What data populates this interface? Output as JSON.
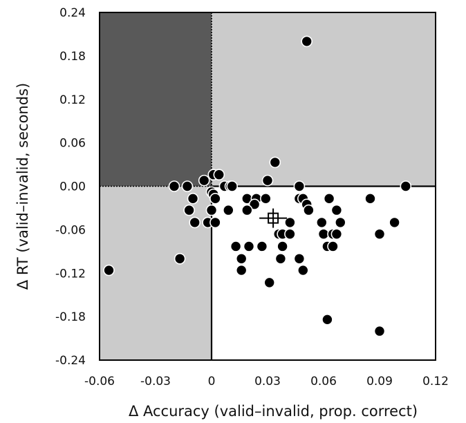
{
  "chart_data": {
    "type": "scatter",
    "title": "",
    "xlabel": "Δ Accuracy (valid–invalid, prop. correct)",
    "ylabel": "Δ RT (valid–invalid, seconds)",
    "xlim": [
      -0.06,
      0.12
    ],
    "ylim": [
      -0.24,
      0.24
    ],
    "x_ticks": [
      -0.06,
      -0.03,
      0,
      0.03,
      0.06,
      0.09,
      0.12
    ],
    "x_tick_labels": [
      "-0.06",
      "-0.03",
      "0",
      "0.03",
      "0.06",
      "0.09",
      "0.12"
    ],
    "y_ticks": [
      0.24,
      0.18,
      0.12,
      0.06,
      0.0,
      -0.06,
      -0.12,
      -0.18,
      -0.24
    ],
    "y_tick_labels": [
      "0.24",
      "0.18",
      "0.12",
      "0.06",
      "0.00",
      "-0.06",
      "-0.12",
      "-0.18",
      "-0.24"
    ],
    "grid": false,
    "region_colors": {
      "top_left": "#595959",
      "top_right": "#cbcbcb",
      "bottom_left": "#cbcbcb",
      "bottom_right": "#ffffff"
    },
    "point_color": "#000000",
    "mean_marker": {
      "x": 0.033,
      "y": -0.044,
      "shape": "crossed-square"
    },
    "points": [
      [
        0.051,
        0.2
      ],
      [
        0.034,
        0.033
      ],
      [
        0.001,
        0.016
      ],
      [
        0.004,
        0.016
      ],
      [
        -0.004,
        0.008
      ],
      [
        0.03,
        0.008
      ],
      [
        -0.02,
        0.0
      ],
      [
        -0.013,
        0.0
      ],
      [
        0.007,
        0.0
      ],
      [
        0.01,
        0.0
      ],
      [
        0.011,
        0.0
      ],
      [
        0.047,
        0.0
      ],
      [
        0.104,
        0.0
      ],
      [
        0.0,
        -0.008
      ],
      [
        0.001,
        -0.011
      ],
      [
        -0.01,
        -0.017
      ],
      [
        0.002,
        -0.017
      ],
      [
        0.019,
        -0.017
      ],
      [
        0.024,
        -0.017
      ],
      [
        0.029,
        -0.017
      ],
      [
        0.047,
        -0.017
      ],
      [
        0.049,
        -0.017
      ],
      [
        0.063,
        -0.017
      ],
      [
        0.085,
        -0.017
      ],
      [
        0.023,
        -0.025
      ],
      [
        0.051,
        -0.025
      ],
      [
        -0.012,
        -0.033
      ],
      [
        0.0,
        -0.033
      ],
      [
        0.009,
        -0.033
      ],
      [
        0.019,
        -0.033
      ],
      [
        0.052,
        -0.033
      ],
      [
        0.067,
        -0.033
      ],
      [
        -0.009,
        -0.05
      ],
      [
        -0.002,
        -0.05
      ],
      [
        0.002,
        -0.05
      ],
      [
        0.042,
        -0.05
      ],
      [
        0.059,
        -0.05
      ],
      [
        0.069,
        -0.05
      ],
      [
        0.098,
        -0.05
      ],
      [
        0.036,
        -0.066
      ],
      [
        0.038,
        -0.066
      ],
      [
        0.042,
        -0.066
      ],
      [
        0.06,
        -0.066
      ],
      [
        0.065,
        -0.066
      ],
      [
        0.067,
        -0.066
      ],
      [
        0.09,
        -0.066
      ],
      [
        0.013,
        -0.083
      ],
      [
        0.02,
        -0.083
      ],
      [
        0.027,
        -0.083
      ],
      [
        0.038,
        -0.083
      ],
      [
        0.062,
        -0.083
      ],
      [
        0.065,
        -0.083
      ],
      [
        -0.017,
        -0.1
      ],
      [
        0.016,
        -0.1
      ],
      [
        0.037,
        -0.1
      ],
      [
        0.047,
        -0.1
      ],
      [
        -0.055,
        -0.116
      ],
      [
        0.016,
        -0.116
      ],
      [
        0.049,
        -0.116
      ],
      [
        0.031,
        -0.133
      ],
      [
        0.062,
        -0.184
      ],
      [
        0.09,
        -0.2
      ]
    ]
  }
}
